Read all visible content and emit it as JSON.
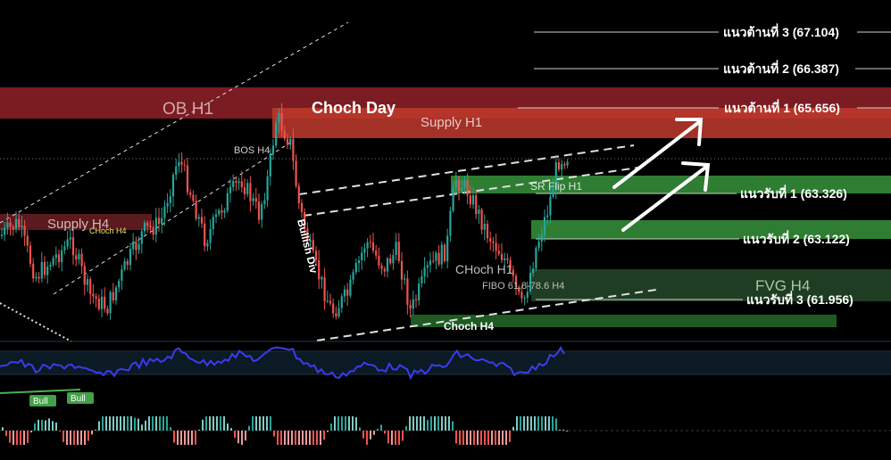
{
  "chart_data": {
    "type": "candlestick",
    "resistance_levels": [
      {
        "label": "แนวต้านที่ 3 (67.104)",
        "price": 67.104
      },
      {
        "label": "แนวต้านที่ 2 (66.387)",
        "price": 66.387
      },
      {
        "label": "แนวต้านที่ 1 (65.656)",
        "price": 65.656
      }
    ],
    "support_levels": [
      {
        "label": "แนวรับที่ 1 (63.326)",
        "price": 63.326
      },
      {
        "label": "แนวรับที่ 2 (63.122)",
        "price": 63.122
      },
      {
        "label": "แนวรับที่ 3 (61.956)",
        "price": 61.956
      }
    ],
    "zones": [
      {
        "label": "OB H1",
        "color": "#7a1c22"
      },
      {
        "label": "Supply H1",
        "color": "#c0392b"
      },
      {
        "label": "Supply H4",
        "color": "#5a1a1e"
      },
      {
        "label": "SR Flip H1",
        "color": "#2e7d32"
      },
      {
        "label": "FVG H4",
        "color": "#1f3d22"
      }
    ],
    "annotations": {
      "choch_day": "Choch Day",
      "bos_h4": "BOS H4",
      "choch_h4_small": "CHoch H4",
      "bullish_div": "Bullish Div",
      "choch_h1": "CHoch H1",
      "fibo": "FIBO 61.8-78.6 H4",
      "choch_h4": "Choch H4"
    },
    "indicator": {
      "badges": [
        "Bull",
        "Bull"
      ],
      "line_color": "#3b3bf0"
    },
    "colors": {
      "up": "#26a69a",
      "down": "#ef5350",
      "background": "#000000"
    }
  }
}
